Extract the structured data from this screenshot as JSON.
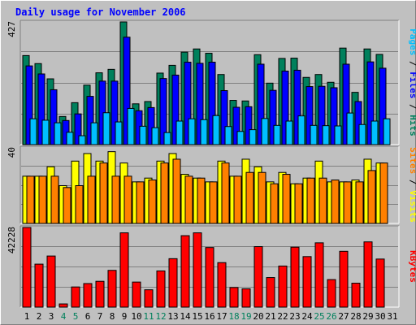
{
  "chart_data": {
    "type": "bar",
    "title": "Daily usage for November 2006",
    "days": [
      "1",
      "2",
      "3",
      "4",
      "5",
      "6",
      "7",
      "8",
      "9",
      "10",
      "11",
      "12",
      "13",
      "14",
      "15",
      "16",
      "17",
      "18",
      "19",
      "20",
      "21",
      "22",
      "23",
      "24",
      "25",
      "26",
      "27",
      "28",
      "29",
      "30",
      "31"
    ],
    "weekend_days": [
      "4",
      "5",
      "11",
      "12",
      "18",
      "19",
      "25",
      "26"
    ],
    "panels": [
      {
        "id": "hits-files-pages",
        "max_label": "427",
        "ymax": 427,
        "legend": [
          "Pages",
          "Files",
          "Hits"
        ],
        "separator": " / ",
        "series": [
          {
            "name": "Hits",
            "color": "#00805c",
            "values": [
              310,
              282,
              229,
              98,
              146,
              207,
              250,
              262,
              427,
              142,
              150,
              249,
              276,
              322,
              333,
              318,
              244,
              154,
              152,
              313,
              214,
              300,
              301,
              234,
              244,
              217,
              336,
              182,
              333,
              314,
              0
            ]
          },
          {
            "name": "Files",
            "color": "#0000ff",
            "values": [
              274,
              246,
              191,
              84,
              107,
              168,
              221,
              221,
              374,
              118,
              129,
              230,
              242,
              287,
              283,
              287,
              188,
              130,
              132,
              280,
              189,
              256,
              259,
              202,
              203,
              198,
              280,
              150,
              288,
              266,
              0
            ]
          },
          {
            "name": "Pages",
            "color": "#00bfff",
            "values": [
              90,
              85,
              76,
              43,
              31,
              76,
              111,
              79,
              126,
              64,
              59,
              42,
              82,
              90,
              87,
              101,
              63,
              46,
              52,
              91,
              67,
              82,
              100,
              67,
              66,
              65,
              110,
              70,
              82,
              90,
              0
            ]
          }
        ]
      },
      {
        "id": "visits-sites",
        "max_label": "40",
        "ymax": 40,
        "legend": [
          "Sites",
          "Visits"
        ],
        "separator": " / ",
        "series": [
          {
            "name": "Visits",
            "color": "#ffff00",
            "values": [
              25,
              25,
              30,
              20,
              33,
              37,
              33,
              38,
              32,
              22,
              24,
              33,
              37,
              26,
              24,
              22,
              33,
              25,
              34,
              30,
              22,
              27,
              21,
              24,
              33,
              22,
              22,
              23,
              34,
              32,
              0
            ]
          },
          {
            "name": "Sites",
            "color": "#ff8000",
            "values": [
              25,
              25,
              25,
              19,
              20,
              25,
              32,
              25,
              25,
              22,
              23,
              32,
              34,
              25,
              24,
              22,
              32,
              25,
              27,
              27,
              21,
              26,
              21,
              24,
              24,
              23,
              22,
              22,
              28,
              32,
              0
            ]
          }
        ]
      },
      {
        "id": "kbytes",
        "max_label": "42228",
        "ymax": 42228,
        "legend": [
          "KBytes"
        ],
        "separator": "",
        "series": [
          {
            "name": "KBytes",
            "color": "#ff0000",
            "values": [
              42228,
              22800,
              27100,
              1700,
              10700,
              12500,
              13700,
              19500,
              39400,
              13300,
              9200,
              19200,
              25700,
              37900,
              39400,
              31600,
              23600,
              10400,
              9700,
              32100,
              15700,
              21800,
              31800,
              26800,
              34100,
              14600,
              29600,
              12700,
              34600,
              25500,
              0
            ]
          }
        ]
      }
    ]
  }
}
